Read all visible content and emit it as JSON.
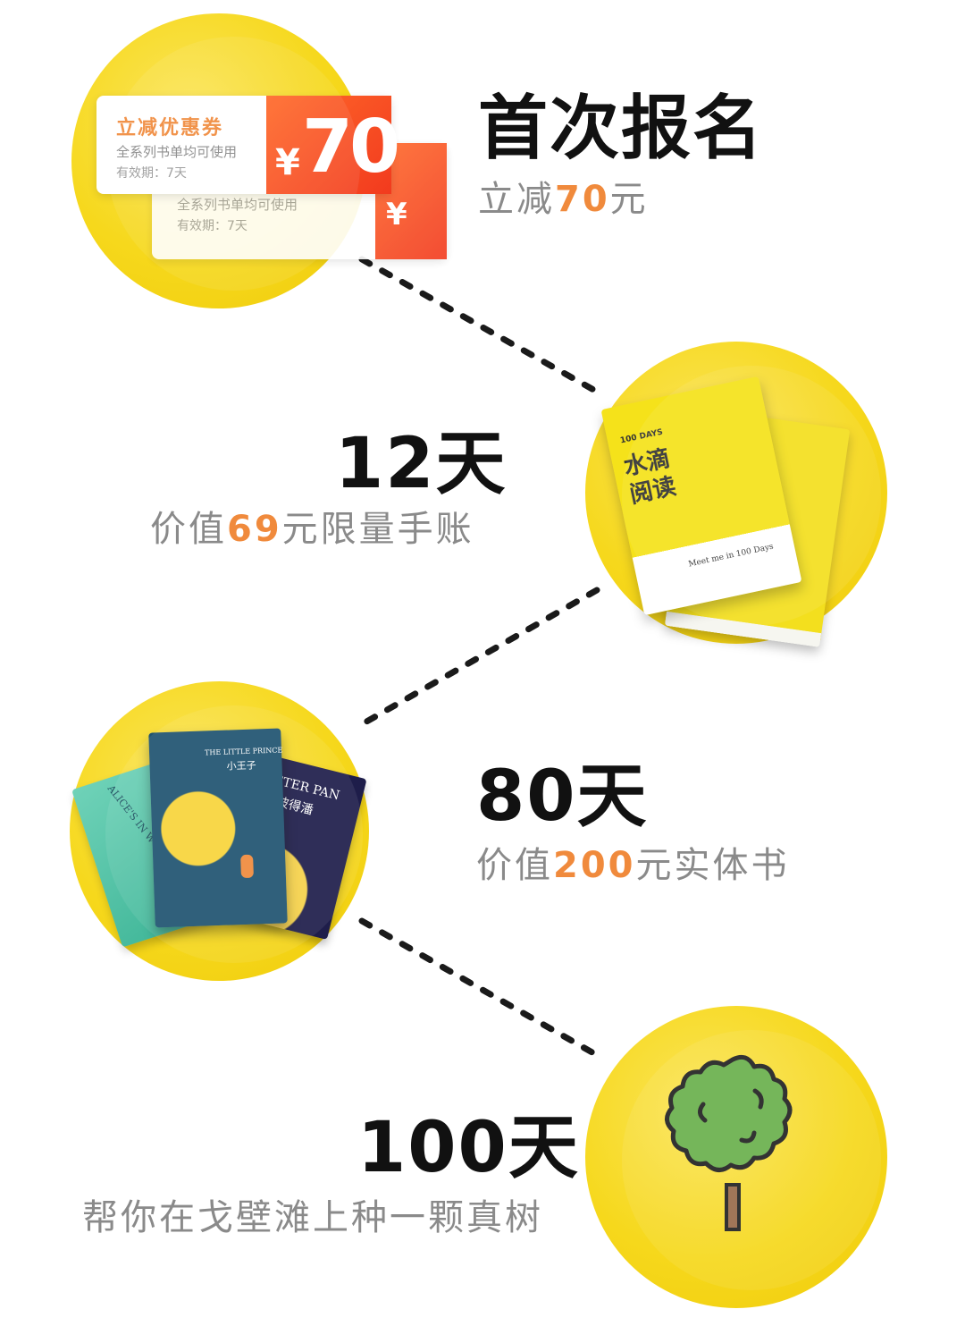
{
  "steps": [
    {
      "title": "首次报名",
      "subtitle_prefix": "立减",
      "subtitle_highlight": "70",
      "subtitle_suffix": "元"
    },
    {
      "title": "12天",
      "subtitle_prefix": "价值",
      "subtitle_highlight": "69",
      "subtitle_suffix": "元限量手账"
    },
    {
      "title": "80天",
      "subtitle_prefix": "价值",
      "subtitle_highlight": "200",
      "subtitle_suffix": "元实体书"
    },
    {
      "title": "100天",
      "subtitle_prefix": "帮你在戈壁滩上种一颗真树",
      "subtitle_highlight": "",
      "subtitle_suffix": ""
    }
  ],
  "coupon": {
    "title": "立减优惠券",
    "desc": "全系列书单均可使用",
    "validity": "有效期：7天",
    "currency": "¥",
    "amount": "70"
  },
  "notebook": {
    "days": "100 DAYS",
    "title_line1": "水滴",
    "title_line2": "阅读",
    "tagline": "Meet me in 100 Days"
  },
  "books": {
    "little_prince_en": "THE LITTLE PRINCE",
    "little_prince_cn": "小王子",
    "peter_pan_en": "PETER PAN",
    "peter_pan_cn": "彼得潘",
    "alice_en": "ALICE'S IN W"
  },
  "colors": {
    "circle": "#f6d81c",
    "highlight": "#f08a3c",
    "title": "#111111",
    "subtitle": "#8a8a8a",
    "coupon_red": "#f23a1e",
    "tree_green": "#6ab04c"
  }
}
